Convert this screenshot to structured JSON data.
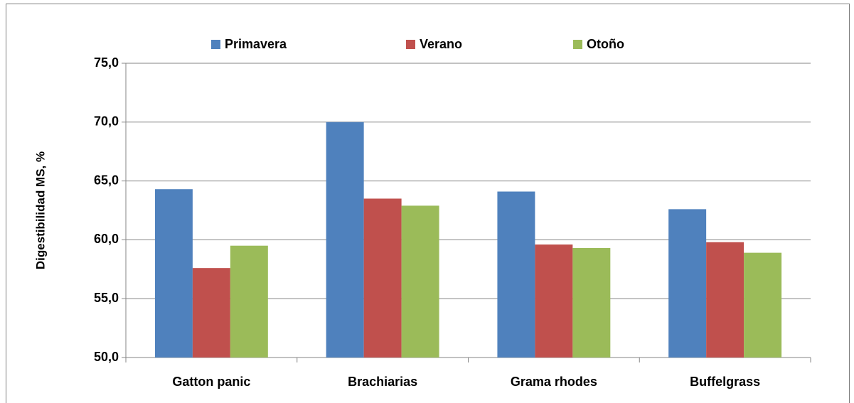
{
  "chart_data": {
    "type": "bar",
    "y_label": "Digestibilidad MS, %",
    "categories": [
      "Gatton panic",
      "Brachiarias",
      "Grama rhodes",
      "Buffelgrass"
    ],
    "series": [
      {
        "name": "Primavera",
        "color": "#4f81bd",
        "values": [
          64.3,
          70.0,
          64.1,
          62.6
        ]
      },
      {
        "name": "Verano",
        "color": "#c0504d",
        "values": [
          57.6,
          63.5,
          59.6,
          59.8
        ]
      },
      {
        "name": "Otoño",
        "color": "#9bbb59",
        "values": [
          59.5,
          62.9,
          59.3,
          58.9
        ]
      }
    ],
    "ylim": [
      50,
      75
    ],
    "yticks": [
      {
        "value": 50,
        "label": "50,0"
      },
      {
        "value": 55,
        "label": "55,0"
      },
      {
        "value": 60,
        "label": "60,0"
      },
      {
        "value": 65,
        "label": "65,0"
      },
      {
        "value": 70,
        "label": "70,0"
      },
      {
        "value": 75,
        "label": "75,0"
      }
    ],
    "grid": true,
    "legend": "top"
  }
}
